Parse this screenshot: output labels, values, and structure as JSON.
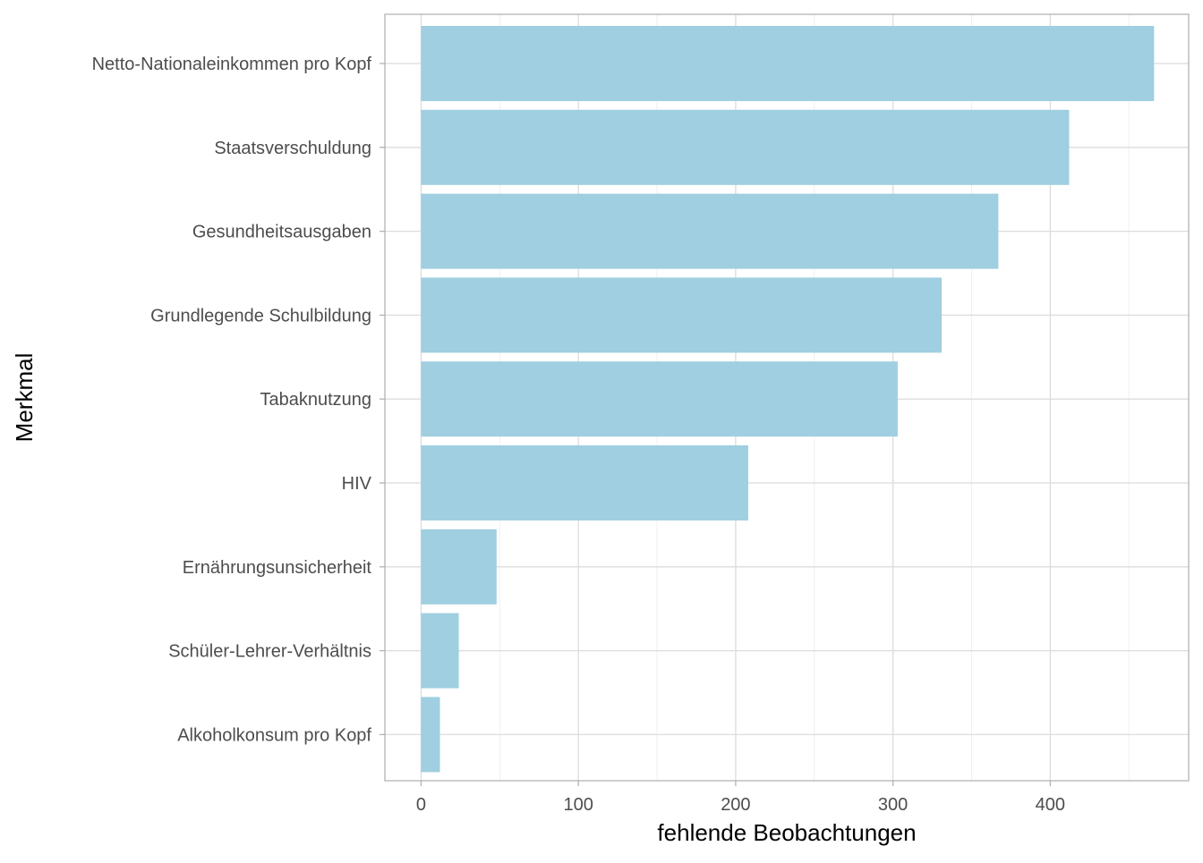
{
  "chart_data": {
    "type": "bar",
    "orientation": "horizontal",
    "categories": [
      "Netto-Nationaleinkommen pro Kopf",
      "Staatsverschuldung",
      "Gesundheitsausgaben",
      "Grundlegende Schulbildung",
      "Tabaknutzung",
      "HIV",
      "Ernährungsunsicherheit",
      "Schüler-Lehrer-Verhältnis",
      "Alkoholkonsum pro Kopf"
    ],
    "values": [
      466,
      412,
      367,
      331,
      303,
      208,
      48,
      24,
      12
    ],
    "xlabel": "fehlende Beobachtungen",
    "ylabel": "Merkmal",
    "xlim": [
      -23,
      488
    ],
    "xticks": [
      0,
      100,
      200,
      300,
      400
    ],
    "xtick_labels": [
      "0",
      "100",
      "200",
      "300",
      "400"
    ],
    "grid": true,
    "legend": "none",
    "bar_color": "#9fcfe0",
    "theme": "light"
  }
}
